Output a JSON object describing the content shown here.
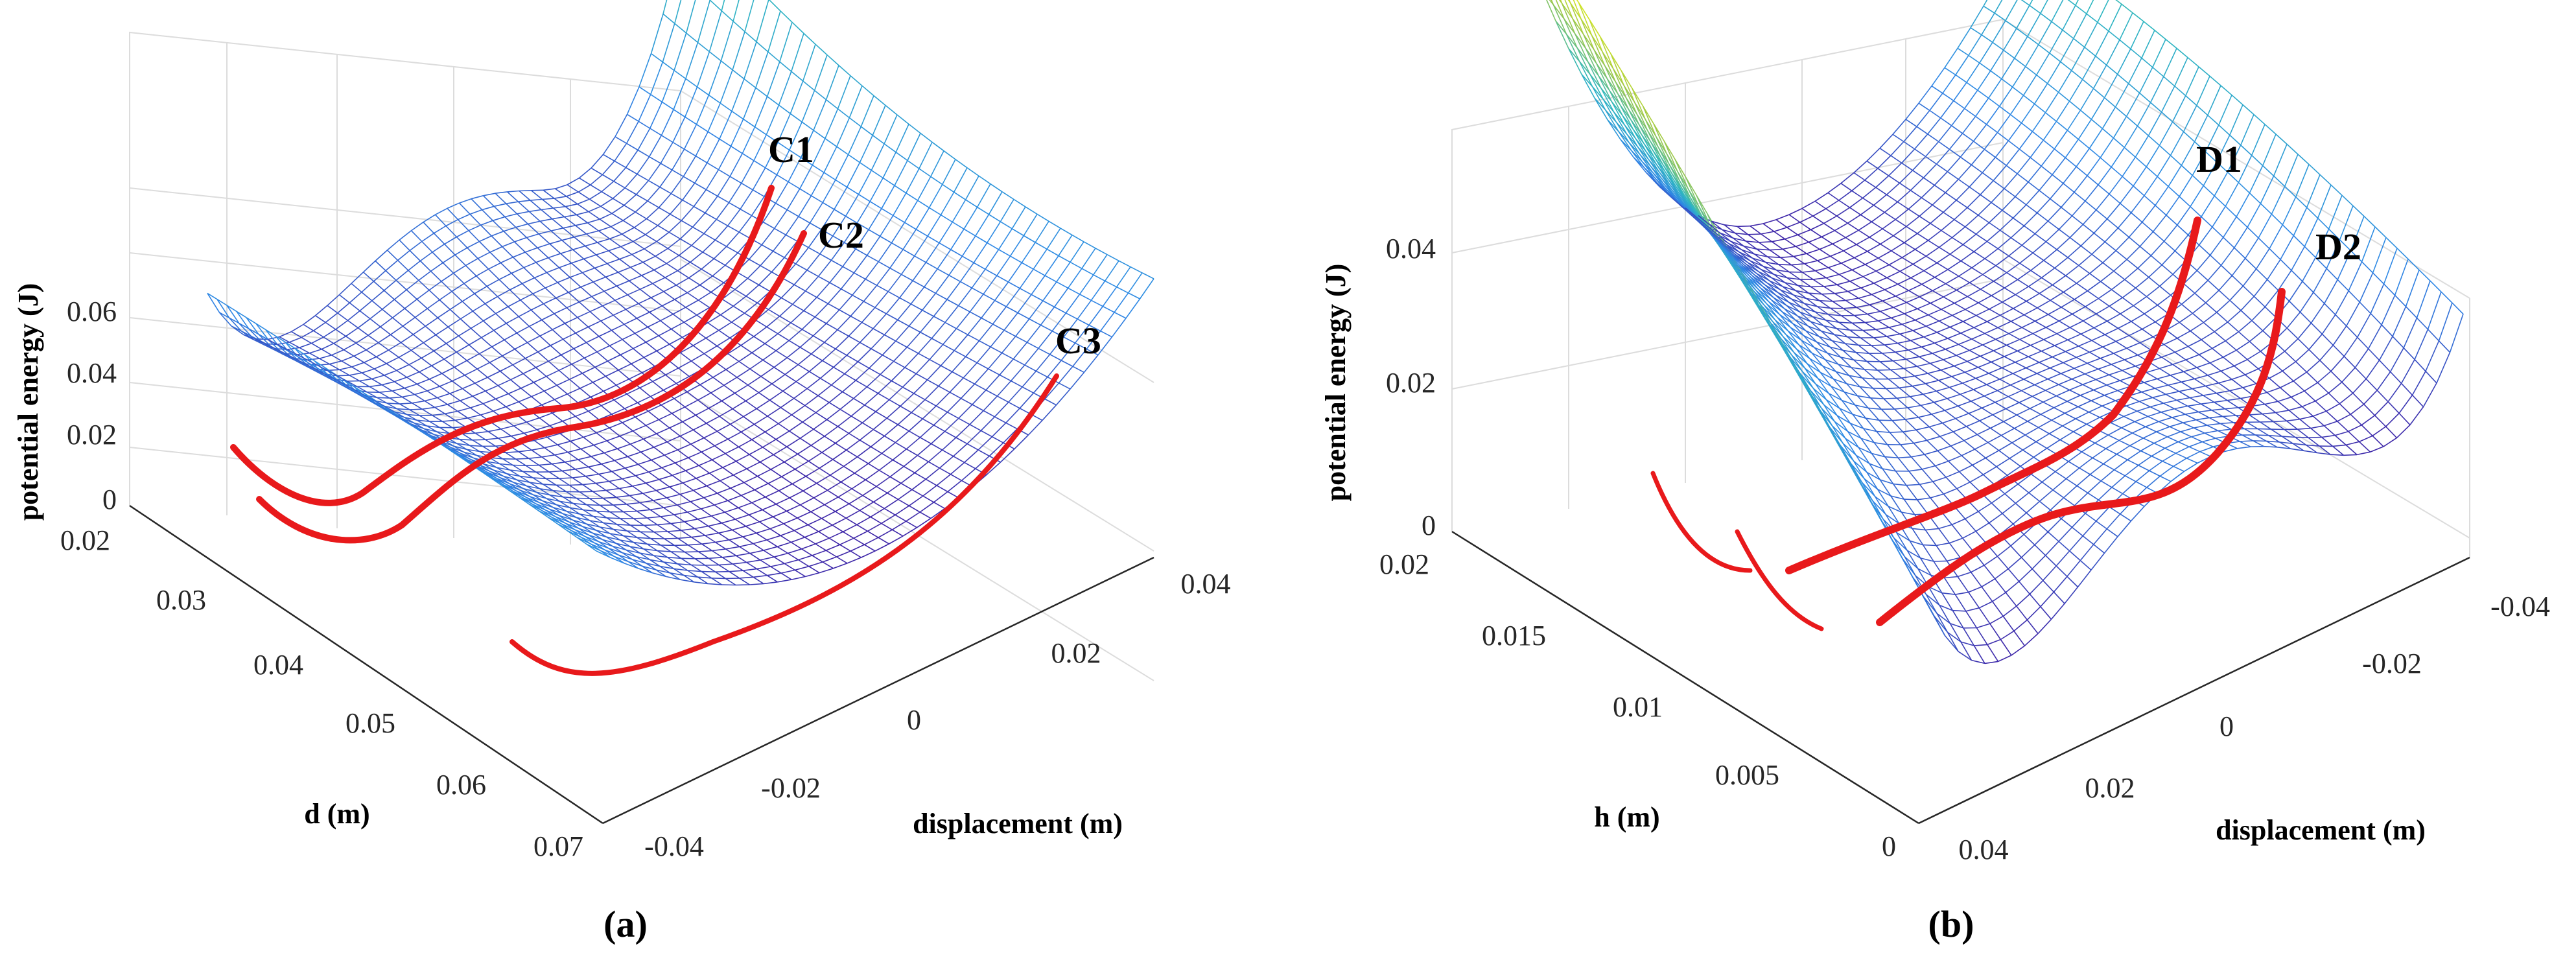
{
  "chart_data": [
    {
      "type": "surface",
      "panel_label": "(a)",
      "zlabel": "potential energy (J)",
      "ylabel": "d (m)",
      "xlabel": "displacement (m)",
      "z_ticks": [
        "0",
        "0.02",
        "0.04",
        "0.06"
      ],
      "d_ticks": [
        "0.02",
        "0.03",
        "0.04",
        "0.05",
        "0.06",
        "0.07"
      ],
      "disp_ticks": [
        "-0.04",
        "-0.02",
        "0",
        "0.02",
        "0.04"
      ],
      "curves": [
        "C1",
        "C2",
        "C3"
      ],
      "d_range": [
        0.02,
        0.07
      ],
      "displacement_range": [
        -0.04,
        0.04
      ],
      "z_range": [
        0,
        0.07
      ]
    },
    {
      "type": "surface",
      "panel_label": "(b)",
      "zlabel": "potential energy (J)",
      "ylabel": "h (m)",
      "xlabel": "displacement (m)",
      "z_ticks": [
        "0",
        "0.02",
        "0.04"
      ],
      "h_ticks": [
        "0.02",
        "0.015",
        "0.01",
        "0.005",
        "0"
      ],
      "disp_ticks": [
        "0.04",
        "0.02",
        "0",
        "-0.02",
        "-0.04"
      ],
      "curves": [
        "D1",
        "D2"
      ],
      "h_range": [
        0,
        0.02
      ],
      "displacement_range": [
        -0.04,
        0.04
      ],
      "z_range": [
        0,
        0.045
      ]
    }
  ],
  "colors": {
    "surface_low": "#3e26a8",
    "surface_mid": "#2eb7c0",
    "surface_high": "#f9fb0e",
    "curve": "#e8191b"
  }
}
